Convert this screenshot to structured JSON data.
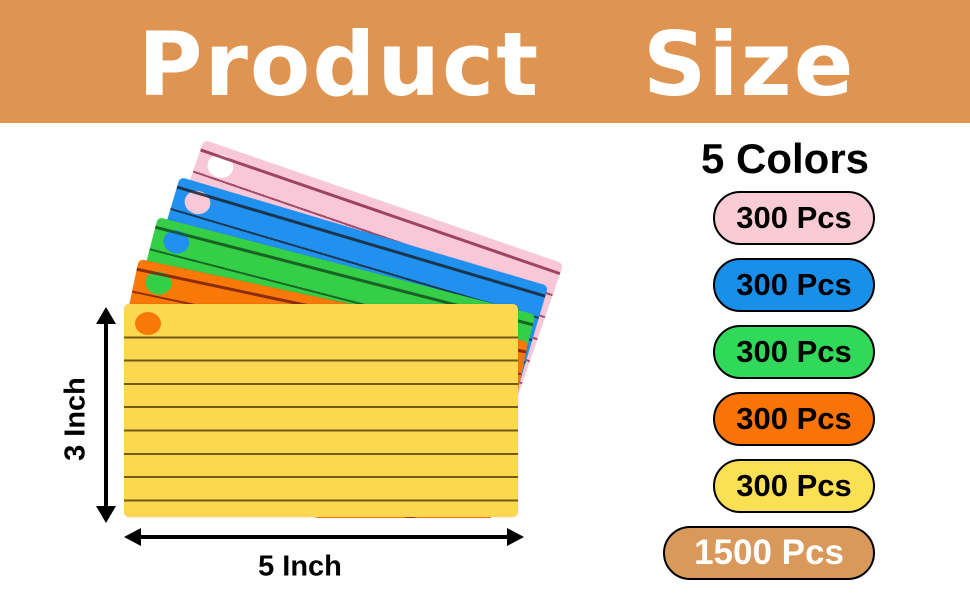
{
  "banner": {
    "word1": "Product",
    "word2": "Size",
    "bg": "#DF9551",
    "text_color": "#FFFFFF"
  },
  "size_diagram": {
    "height_label": "3 Inch",
    "width_label": "5 Inch",
    "cards": [
      {
        "name": "pink",
        "color": "#F9C8D8",
        "hole_color": "#FFFFFF",
        "line_color": "#8E2B50",
        "header_line": true
      },
      {
        "name": "blue",
        "color": "#2191F0",
        "hole_color": "#F9C8D8",
        "line_color": "#1A2430",
        "header_line": true
      },
      {
        "name": "green",
        "color": "#35CF47",
        "hole_color": "#2191F0",
        "line_color": "#14501E",
        "header_line": true
      },
      {
        "name": "orange",
        "color": "#F87808",
        "hole_color": "#35CF47",
        "line_color": "#7A1E10",
        "header_line": true
      },
      {
        "name": "yellow",
        "color": "#FBD84F",
        "hole_color": "#F87808",
        "line_color": "#4B3D08",
        "header_line": false
      }
    ]
  },
  "legend": {
    "heading": "5 Colors",
    "badges": [
      {
        "label": "300 Pcs",
        "color": "#F9CBD5",
        "text_color": "#000000",
        "wide": false
      },
      {
        "label": "300 Pcs",
        "color": "#1890EA",
        "text_color": "#000000",
        "wide": false
      },
      {
        "label": "300 Pcs",
        "color": "#31D95A",
        "text_color": "#000000",
        "wide": false
      },
      {
        "label": "300 Pcs",
        "color": "#F97307",
        "text_color": "#000000",
        "wide": false
      },
      {
        "label": "300 Pcs",
        "color": "#FAE052",
        "text_color": "#000000",
        "wide": false
      },
      {
        "label": "1500 Pcs",
        "color": "#D9995A",
        "text_color": "#FFFFFF",
        "wide": true
      }
    ]
  }
}
